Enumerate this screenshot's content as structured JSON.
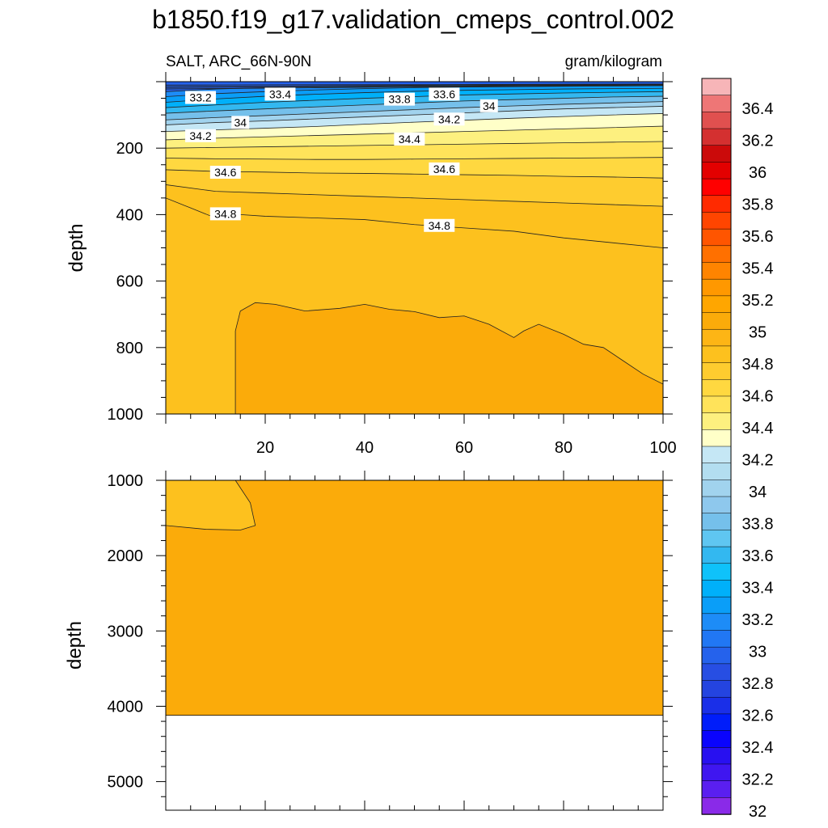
{
  "title": "b1850.f19_g17.validation_cmeps_control.002",
  "subtitle_left": "SALT, ARC_66N-90N",
  "subtitle_right": "gram/kilogram",
  "chart_data": [
    {
      "type": "heatmap",
      "panel": "upper",
      "variable": "SALT",
      "region": "ARC_66N-90N",
      "units": "gram/kilogram",
      "xlabel": "",
      "ylabel": "depth",
      "xlim": [
        0,
        100
      ],
      "ylim": [
        1000,
        0
      ],
      "x_ticks": [
        20,
        40,
        60,
        80,
        100
      ],
      "y_ticks": [
        200,
        400,
        600,
        800,
        1000
      ],
      "contour_labels": [
        {
          "text": "33.2",
          "x": 7,
          "depth": 50
        },
        {
          "text": "33.4",
          "x": 23,
          "depth": 40
        },
        {
          "text": "33.8",
          "x": 47,
          "depth": 55
        },
        {
          "text": "33.6",
          "x": 56,
          "depth": 40
        },
        {
          "text": "34",
          "x": 65,
          "depth": 75
        },
        {
          "text": "34",
          "x": 15,
          "depth": 125
        },
        {
          "text": "34.2",
          "x": 57,
          "depth": 115
        },
        {
          "text": "34.2",
          "x": 7,
          "depth": 165
        },
        {
          "text": "34.4",
          "x": 49,
          "depth": 175
        },
        {
          "text": "34.6",
          "x": 12,
          "depth": 275
        },
        {
          "text": "34.6",
          "x": 56,
          "depth": 265
        },
        {
          "text": "34.8",
          "x": 12,
          "depth": 400
        },
        {
          "text": "34.8",
          "x": 55,
          "depth": 435
        }
      ],
      "contours": [
        {
          "level": 34.8,
          "points": [
            [
              0,
              350
            ],
            [
              5,
              380
            ],
            [
              10,
              410
            ],
            [
              15,
              400
            ],
            [
              20,
              405
            ],
            [
              30,
              410
            ],
            [
              40,
              415
            ],
            [
              50,
              430
            ],
            [
              60,
              440
            ],
            [
              70,
              450
            ],
            [
              80,
              470
            ],
            [
              90,
              485
            ],
            [
              100,
              500
            ]
          ]
        },
        {
          "level": 34.7,
          "points": [
            [
              0,
              310
            ],
            [
              10,
              330
            ],
            [
              20,
              335
            ],
            [
              30,
              340
            ],
            [
              40,
              345
            ],
            [
              50,
              350
            ],
            [
              60,
              355
            ],
            [
              70,
              360
            ],
            [
              80,
              365
            ],
            [
              90,
              370
            ],
            [
              100,
              375
            ]
          ]
        },
        {
          "level": 34.6,
          "points": [
            [
              0,
              265
            ],
            [
              10,
              270
            ],
            [
              20,
              272
            ],
            [
              30,
              275
            ],
            [
              40,
              276
            ],
            [
              50,
              278
            ],
            [
              60,
              280
            ],
            [
              70,
              282
            ],
            [
              80,
              285
            ],
            [
              90,
              287
            ],
            [
              100,
              290
            ]
          ]
        },
        {
          "level": 34.5,
          "points": [
            [
              0,
              230
            ],
            [
              10,
              232
            ],
            [
              20,
              233
            ],
            [
              30,
              234
            ],
            [
              40,
              234
            ],
            [
              50,
              233
            ],
            [
              60,
              232
            ],
            [
              70,
              231
            ],
            [
              80,
              230
            ],
            [
              90,
              229
            ],
            [
              100,
              228
            ]
          ]
        },
        {
          "level": 34.4,
          "points": [
            [
              0,
              200
            ],
            [
              10,
              198
            ],
            [
              20,
              196
            ],
            [
              30,
              194
            ],
            [
              40,
              192
            ],
            [
              50,
              190
            ],
            [
              60,
              188
            ],
            [
              70,
              186
            ],
            [
              80,
              184
            ],
            [
              90,
              182
            ],
            [
              100,
              180
            ]
          ]
        },
        {
          "level": 34.3,
          "points": [
            [
              0,
              175
            ],
            [
              10,
              170
            ],
            [
              20,
              166
            ],
            [
              30,
              162
            ],
            [
              40,
              158
            ],
            [
              50,
              154
            ],
            [
              60,
              150
            ],
            [
              70,
              146
            ],
            [
              80,
              142
            ],
            [
              90,
              138
            ],
            [
              100,
              134
            ]
          ]
        },
        {
          "level": 34.2,
          "points": [
            [
              0,
              150
            ],
            [
              10,
              145
            ],
            [
              20,
              140
            ],
            [
              30,
              135
            ],
            [
              40,
              128
            ],
            [
              50,
              122
            ],
            [
              60,
              116
            ],
            [
              70,
              110
            ],
            [
              80,
              105
            ],
            [
              90,
              100
            ],
            [
              100,
              96
            ]
          ]
        },
        {
          "level": 34.1,
          "points": [
            [
              0,
              130
            ],
            [
              10,
              123
            ],
            [
              20,
              118
            ],
            [
              30,
              112
            ],
            [
              40,
              106
            ],
            [
              50,
              100
            ],
            [
              60,
              94
            ],
            [
              70,
              88
            ],
            [
              80,
              82
            ],
            [
              90,
              78
            ],
            [
              100,
              74
            ]
          ]
        },
        {
          "level": 34.0,
          "points": [
            [
              0,
              115
            ],
            [
              10,
              108
            ],
            [
              20,
              102
            ],
            [
              30,
              96
            ],
            [
              40,
              90
            ],
            [
              50,
              84
            ],
            [
              60,
              78
            ],
            [
              70,
              73
            ],
            [
              80,
              68
            ],
            [
              90,
              64
            ],
            [
              100,
              60
            ]
          ]
        },
        {
          "level": 33.8,
          "points": [
            [
              0,
              95
            ],
            [
              10,
              88
            ],
            [
              20,
              82
            ],
            [
              30,
              76
            ],
            [
              40,
              70
            ],
            [
              50,
              64
            ],
            [
              60,
              58
            ],
            [
              70,
              54
            ],
            [
              80,
              50
            ],
            [
              90,
              46
            ],
            [
              100,
              44
            ]
          ]
        },
        {
          "level": 33.6,
          "points": [
            [
              0,
              78
            ],
            [
              10,
              70
            ],
            [
              20,
              62
            ],
            [
              30,
              56
            ],
            [
              40,
              50
            ],
            [
              50,
              45
            ],
            [
              60,
              40
            ],
            [
              70,
              37
            ],
            [
              80,
              34
            ],
            [
              90,
              32
            ],
            [
              100,
              30
            ]
          ]
        },
        {
          "level": 33.4,
          "points": [
            [
              0,
              62
            ],
            [
              10,
              52
            ],
            [
              20,
              44
            ],
            [
              30,
              38
            ],
            [
              40,
              33
            ],
            [
              50,
              29
            ],
            [
              60,
              26
            ],
            [
              70,
              24
            ],
            [
              80,
              22
            ],
            [
              90,
              21
            ],
            [
              100,
              20
            ]
          ]
        },
        {
          "level": 33.2,
          "points": [
            [
              0,
              45
            ],
            [
              10,
              36
            ],
            [
              20,
              30
            ],
            [
              30,
              25
            ],
            [
              40,
              21
            ],
            [
              50,
              18
            ],
            [
              60,
              16
            ],
            [
              70,
              15
            ],
            [
              80,
              14
            ],
            [
              90,
              13
            ],
            [
              100,
              12
            ]
          ]
        },
        {
          "level": 33.0,
          "points": [
            [
              0,
              30
            ],
            [
              10,
              22
            ],
            [
              20,
              18
            ],
            [
              30,
              15
            ],
            [
              40,
              13
            ],
            [
              50,
              11
            ],
            [
              60,
              10
            ],
            [
              70,
              9
            ],
            [
              80,
              8
            ],
            [
              90,
              8
            ],
            [
              100,
              7
            ]
          ]
        },
        {
          "level": 34.9,
          "closed_to_bottom": true,
          "points": [
            [
              14,
              1000
            ],
            [
              14,
              750
            ],
            [
              15,
              690
            ],
            [
              18,
              665
            ],
            [
              22,
              670
            ],
            [
              28,
              690
            ],
            [
              35,
              682
            ],
            [
              40,
              670
            ],
            [
              45,
              685
            ],
            [
              50,
              692
            ],
            [
              55,
              710
            ],
            [
              60,
              705
            ],
            [
              65,
              730
            ],
            [
              70,
              770
            ],
            [
              72,
              750
            ],
            [
              75,
              730
            ],
            [
              80,
              760
            ],
            [
              84,
              790
            ],
            [
              88,
              800
            ],
            [
              92,
              840
            ],
            [
              96,
              880
            ],
            [
              100,
              910
            ]
          ]
        }
      ]
    },
    {
      "type": "heatmap",
      "panel": "lower",
      "xlabel": "",
      "ylabel": "depth",
      "xlim": [
        0,
        100
      ],
      "ylim": [
        5400,
        1000
      ],
      "y_ticks": [
        1000,
        2000,
        3000,
        4000,
        5000
      ],
      "bottom_depth": 4120,
      "contours": [
        {
          "level": 34.9,
          "points": [
            [
              14,
              1000
            ],
            [
              17,
              1300
            ],
            [
              18,
              1600
            ],
            [
              15,
              1660
            ],
            [
              8,
              1650
            ],
            [
              0,
              1600
            ]
          ]
        }
      ]
    }
  ],
  "colorbar": {
    "labels": [
      "36.4",
      "36.2",
      "36",
      "35.8",
      "35.6",
      "35.4",
      "35.2",
      "35",
      "34.8",
      "34.6",
      "34.4",
      "34.2",
      "34",
      "33.8",
      "33.6",
      "33.4",
      "33.2",
      "33",
      "32.8",
      "32.6",
      "32.4",
      "32.2",
      "32"
    ],
    "colors_top_to_bottom": [
      "#f7b5b8",
      "#ee7676",
      "#e0504f",
      "#d43030",
      "#cb0a0a",
      "#e30000",
      "#ff0000",
      "#ff2a00",
      "#ff4500",
      "#ff5500",
      "#ff7000",
      "#ff8400",
      "#ff9800",
      "#ffa600",
      "#fbab0a",
      "#fdb515",
      "#fdc11e",
      "#fecc2f",
      "#ffd840",
      "#ffe35a",
      "#fdf07f",
      "#ffffc8",
      "#c5e7f5",
      "#b3def0",
      "#a1d3ee",
      "#8ec8ed",
      "#75c0eb",
      "#5fc6f1",
      "#33b8f0",
      "#0fc2fa",
      "#00b0fa",
      "#0a9ef8",
      "#1d8cf7",
      "#2177f4",
      "#2562ec",
      "#274ee3",
      "#2444e0",
      "#1a2fe8",
      "#001dfa",
      "#0a04fd",
      "#2810f0",
      "#3f16f0",
      "#5a1ff0",
      "#8a2ae8"
    ]
  }
}
